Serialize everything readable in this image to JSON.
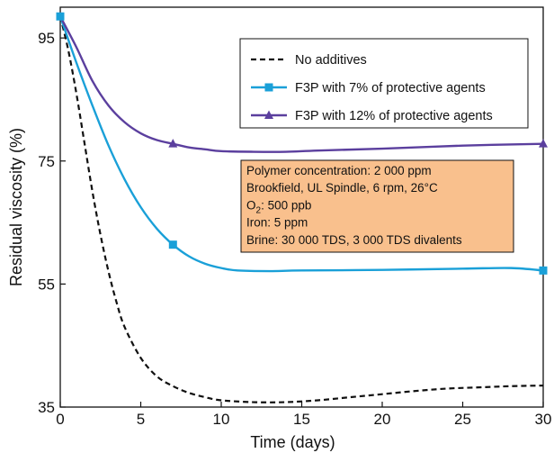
{
  "chart_data": {
    "type": "line",
    "title": "",
    "xlabel": "Time (days)",
    "ylabel": "Residual viscosity (%)",
    "xlim": [
      0,
      30
    ],
    "ylim": [
      35,
      100
    ],
    "xticks": [
      "0",
      "5",
      "10",
      "15",
      "20",
      "25",
      "30"
    ],
    "yticks": [
      "35",
      "55",
      "75",
      "95"
    ],
    "grid": false,
    "legend_position": "top-right",
    "series": [
      {
        "name": "No additives",
        "color": "#111111",
        "style": "dashed",
        "marker": "none",
        "points": [
          [
            0,
            98.5
          ],
          [
            0.5,
            93
          ],
          [
            1,
            86
          ],
          [
            1.5,
            78
          ],
          [
            2,
            70
          ],
          [
            2.5,
            63
          ],
          [
            3,
            57
          ],
          [
            3.5,
            52
          ],
          [
            4,
            48
          ],
          [
            5,
            43
          ],
          [
            6,
            40
          ],
          [
            7,
            38.4
          ],
          [
            8,
            37.3
          ],
          [
            9,
            36.6
          ],
          [
            10,
            36.1
          ],
          [
            12,
            35.8
          ],
          [
            14,
            35.8
          ],
          [
            16,
            36.1
          ],
          [
            18,
            36.6
          ],
          [
            20,
            37.1
          ],
          [
            22,
            37.6
          ],
          [
            24,
            38
          ],
          [
            26,
            38.2
          ],
          [
            28,
            38.4
          ],
          [
            30,
            38.5
          ]
        ]
      },
      {
        "name": "F3P with 7% of protective agents",
        "color": "#1aa0d8",
        "style": "solid",
        "marker": "square",
        "marker_x": [
          0,
          7,
          30
        ],
        "points": [
          [
            0,
            98.5
          ],
          [
            1,
            91
          ],
          [
            2,
            84
          ],
          [
            3,
            77.5
          ],
          [
            4,
            72
          ],
          [
            5,
            67.5
          ],
          [
            6,
            64
          ],
          [
            7,
            61.4
          ],
          [
            8,
            59.5
          ],
          [
            9,
            58.3
          ],
          [
            10,
            57.6
          ],
          [
            11,
            57.2
          ],
          [
            13,
            57.1
          ],
          [
            15,
            57.2
          ],
          [
            20,
            57.3
          ],
          [
            25,
            57.5
          ],
          [
            28,
            57.6
          ],
          [
            30,
            57.2
          ]
        ]
      },
      {
        "name": "F3P with 12% of protective agents",
        "color": "#5b3f9e",
        "style": "solid",
        "marker": "triangle",
        "marker_x": [
          7,
          30
        ],
        "points": [
          [
            0,
            98.5
          ],
          [
            1,
            93.5
          ],
          [
            2,
            88
          ],
          [
            3,
            84
          ],
          [
            4,
            81.3
          ],
          [
            5,
            79.5
          ],
          [
            6,
            78.4
          ],
          [
            7,
            77.8
          ],
          [
            8,
            77.2
          ],
          [
            9,
            76.9
          ],
          [
            10,
            76.6
          ],
          [
            12,
            76.5
          ],
          [
            14,
            76.5
          ],
          [
            16,
            76.7
          ],
          [
            20,
            77
          ],
          [
            25,
            77.5
          ],
          [
            30,
            77.8
          ]
        ]
      }
    ],
    "annotation": {
      "background": "#f9c08d",
      "lines": [
        {
          "main": "Polymer concentration: 2 000 ppm"
        },
        {
          "main": "Brookfield, UL Spindle, 6 rpm, 26°C"
        },
        {
          "main": "O",
          "sub": "2",
          "rest": ": 500 ppb"
        },
        {
          "main": "Iron: 5 ppm"
        },
        {
          "main": "Brine: 30 000 TDS, 3 000 TDS divalents"
        }
      ]
    }
  }
}
